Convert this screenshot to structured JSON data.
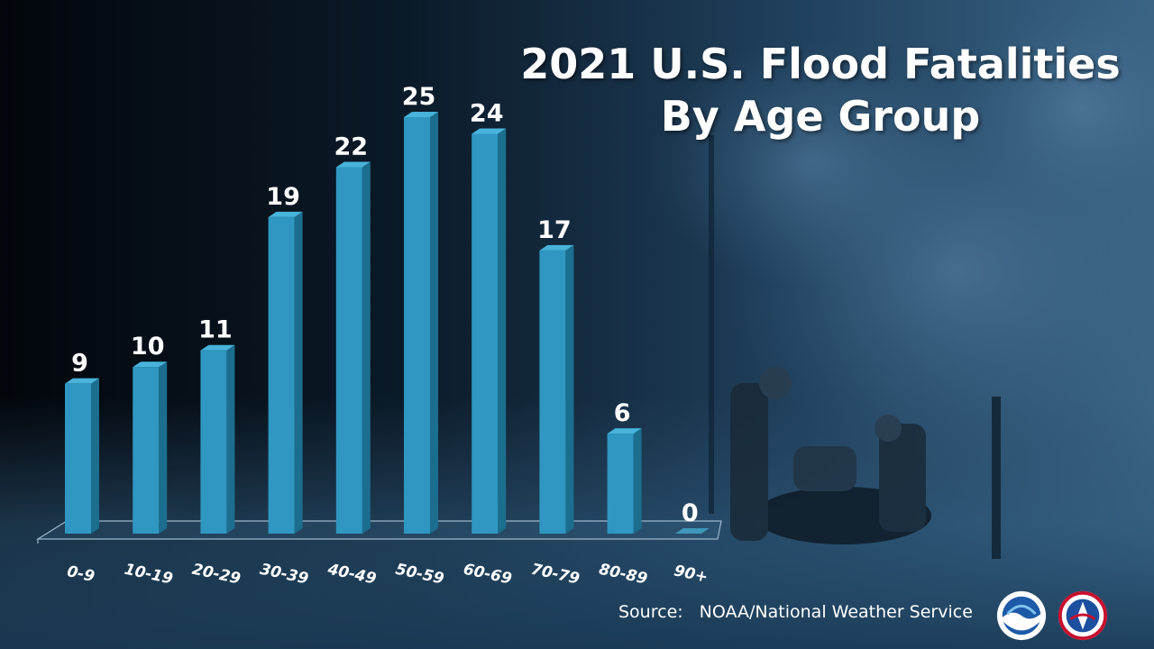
{
  "title_line1": "2021 U.S. Flood Fatalities",
  "title_line2": "By Age Group",
  "source_label": "Source:",
  "source_text": "NOAA/National Weather Service",
  "colors": {
    "bar_front": "#2f97c1",
    "bar_side": "#1c6e8f",
    "bar_top": "#48b3db",
    "label": "#ffffff"
  },
  "chart_data": {
    "type": "bar",
    "title": "2021 U.S. Flood Fatalities By Age Group",
    "categories": [
      "0-9",
      "10-19",
      "20-29",
      "30-39",
      "40-49",
      "50-59",
      "60-69",
      "70-79",
      "80-89",
      "90+"
    ],
    "values": [
      9,
      10,
      11,
      19,
      22,
      25,
      24,
      17,
      6,
      0
    ],
    "ylim": [
      0,
      25
    ],
    "grid": false,
    "legend": "none",
    "data_labels": true
  }
}
